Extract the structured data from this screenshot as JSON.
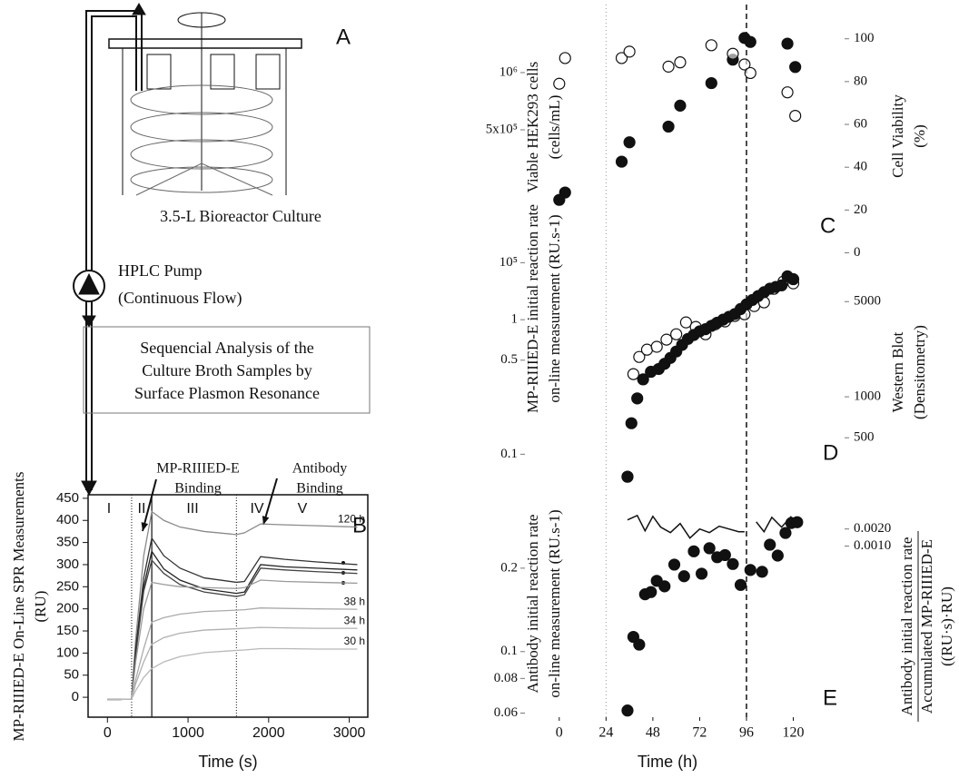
{
  "diagram": {
    "label": "A",
    "bioreactor_label": "3.5-L Bioreactor Culture",
    "pump_label": [
      "HPLC Pump",
      "(Continuous Flow)"
    ],
    "analysis_label": [
      "Sequencial Analysis of the",
      "Culture Broth Samples by",
      "Surface Plasmon Resonance"
    ]
  },
  "chart_data": [
    {
      "type": "line",
      "panel": "B",
      "xlabel": "Time (s)",
      "ylabel": [
        "MP-RIIIED-E On-Line SPR Measurements",
        "(RU)"
      ],
      "xlim": [
        -240,
        3230
      ],
      "ylim": [
        -45,
        458
      ],
      "xticks": [
        0,
        1000,
        2000,
        3000
      ],
      "yticks": [
        0,
        50,
        100,
        150,
        200,
        250,
        300,
        350,
        400,
        450
      ],
      "phase_lines": [
        300,
        550,
        1600
      ],
      "phase_labels": [
        "I",
        "II",
        "III",
        "IV",
        "V"
      ],
      "annotations": [
        {
          "text": [
            "MP-RIIIED-E",
            "Binding"
          ]
        },
        {
          "text": [
            "Antibody",
            "Binding"
          ]
        }
      ],
      "x": [
        0,
        150,
        300,
        350,
        450,
        550,
        700,
        900,
        1200,
        1600,
        1700,
        1900,
        2200,
        2600,
        3100
      ],
      "series": [
        {
          "name": "120 h",
          "color": "#8a8a8a",
          "values": [
            -5,
            -5,
            -4,
            130,
            320,
            420,
            400,
            385,
            375,
            368,
            372,
            392,
            390,
            388,
            385
          ]
        },
        {
          "color": "#333333",
          "values": [
            -5,
            -5,
            -4,
            110,
            270,
            360,
            320,
            292,
            270,
            260,
            262,
            318,
            312,
            306,
            300
          ]
        },
        {
          "color": "#222222",
          "values": [
            -5,
            -5,
            -4,
            100,
            250,
            330,
            290,
            265,
            245,
            235,
            238,
            300,
            295,
            292,
            288
          ]
        },
        {
          "color": "#444444",
          "values": [
            -5,
            -5,
            -4,
            95,
            240,
            310,
            280,
            255,
            238,
            228,
            232,
            292,
            288,
            284,
            280
          ]
        },
        {
          "color": "#9a9a9a",
          "values": [
            -5,
            -5,
            -4,
            80,
            200,
            260,
            255,
            250,
            248,
            246,
            248,
            265,
            262,
            260,
            258
          ]
        },
        {
          "name": "38 h",
          "color": "#aaaaaa",
          "values": [
            -5,
            -5,
            -4,
            40,
            110,
            170,
            180,
            188,
            194,
            197,
            198,
            202,
            201,
            200,
            199
          ]
        },
        {
          "name": "34 h",
          "color": "#b0b0b0",
          "values": [
            -5,
            -5,
            -4,
            30,
            80,
            120,
            135,
            145,
            152,
            155,
            156,
            158,
            157,
            156,
            156
          ]
        },
        {
          "name": "30 h",
          "color": "#b8b8b8",
          "values": [
            -5,
            -5,
            -4,
            15,
            45,
            65,
            80,
            92,
            101,
            106,
            107,
            110,
            110,
            109,
            109
          ]
        }
      ]
    },
    {
      "type": "scatter",
      "panel": "C",
      "ylabel": [
        "Viable HEK293 cells",
        "(cells/mL)"
      ],
      "y2label": [
        "Cell Viability",
        "(%)"
      ],
      "xlim": [
        -19,
        130
      ],
      "ylim": [
        94000,
        2280000
      ],
      "ylog": true,
      "yticks": [
        {
          "value": 1000000,
          "label": "10⁶"
        },
        {
          "value": 500000,
          "label": "5x10⁵"
        },
        {
          "value": 100000,
          "label": "10⁵"
        }
      ],
      "y2lim": [
        -7,
        116
      ],
      "y2ticks": [
        0,
        20,
        40,
        60,
        80,
        100
      ],
      "vlines": [
        {
          "x": 24,
          "style": "dotted"
        },
        {
          "x": 96,
          "style": "dashed"
        }
      ],
      "series": [
        {
          "marker": "filled",
          "color": "#111111",
          "x": [
            0,
            3,
            32,
            36,
            56,
            62,
            78,
            89,
            95,
            98,
            117,
            121
          ],
          "values": [
            214000,
            234000,
            340000,
            430000,
            520000,
            670000,
            880000,
            1170000,
            1520000,
            1450000,
            1420000,
            1070000
          ]
        },
        {
          "marker": "open",
          "color": "#111111",
          "axis": "y2",
          "x": [
            0,
            3,
            32,
            36,
            56,
            62,
            78,
            89,
            95,
            98,
            117,
            121
          ],
          "values": [
            79,
            91,
            91,
            94,
            87,
            89,
            97,
            93,
            88,
            84,
            75,
            64
          ]
        }
      ]
    },
    {
      "type": "scatter",
      "panel": "D",
      "ylabel": [
        "MP-RIIIED-E initial reaction rate",
        "on-line measurement (RU.s-1)"
      ],
      "y2label": [
        "Western Blot",
        "(Densitometry)"
      ],
      "xlim": [
        -19,
        130
      ],
      "ylim": [
        0.054,
        2.43
      ],
      "ylog": true,
      "yticks": [
        1,
        0.5,
        0.1
      ],
      "y2lim": [
        206,
        8860
      ],
      "y2log": true,
      "y2ticks": [
        5000,
        1000,
        500
      ],
      "vlines": [
        {
          "x": 24,
          "style": "dotted"
        },
        {
          "x": 96,
          "style": "dashed"
        }
      ],
      "series": [
        {
          "marker": "open",
          "color": "#111111",
          "axis": "y2",
          "x": [
            35,
            38,
            41,
            45,
            50,
            55,
            60,
            65,
            70,
            75,
            80,
            85,
            90,
            95,
            100,
            105,
            110,
            115,
            120
          ],
          "values": [
            259,
            1468,
            1963,
            2220,
            2330,
            2630,
            2880,
            3520,
            3260,
            2880,
            3410,
            3580,
            3920,
            4040,
            4640,
            4940,
            6210,
            7030,
            6810
          ]
        },
        {
          "marker": "filled",
          "color": "#111111",
          "x": [
            35,
            37,
            40,
            43,
            47,
            51,
            54,
            57,
            60,
            63,
            66,
            69,
            72,
            75,
            78,
            81,
            84,
            87,
            90,
            93,
            96,
            99,
            102,
            105,
            108,
            111,
            114,
            117,
            120
          ],
          "values": [
            0.068,
            0.17,
            0.26,
            0.36,
            0.41,
            0.43,
            0.47,
            0.52,
            0.58,
            0.65,
            0.72,
            0.77,
            0.82,
            0.85,
            0.9,
            0.95,
            1.0,
            1.05,
            1.1,
            1.2,
            1.3,
            1.4,
            1.5,
            1.6,
            1.7,
            1.75,
            1.8,
            2.1,
            2.0
          ]
        }
      ]
    },
    {
      "type": "scatter",
      "panel": "E",
      "xlabel": "Time (h)",
      "ylabel": [
        "Antibody initial reaction rate",
        "on-line measurement (RU.s-1)"
      ],
      "y2label": [
        "Antibody initial reaction rate",
        "Accumulated MP-RIIIED-E",
        "((RU·s)·RU)"
      ],
      "xlim": [
        -19,
        130
      ],
      "xticks": [
        0,
        24,
        48,
        72,
        96,
        120
      ],
      "ylim": [
        0.058,
        0.368
      ],
      "ylog": true,
      "yticks": [
        0.2,
        0.1,
        0.08,
        0.06
      ],
      "y2lim": [
        -0.009,
        0.004
      ],
      "y2ticks": [
        {
          "value": 0.002,
          "label": "0.0020"
        },
        {
          "value": 0.001,
          "label": "0.0010"
        }
      ],
      "vlines": [
        {
          "x": 24,
          "style": "dotted"
        },
        {
          "x": 96,
          "style": "dashed"
        }
      ],
      "series": [
        {
          "marker": "filled",
          "color": "#111111",
          "x": [
            35,
            38,
            41,
            44,
            47,
            50,
            54,
            59,
            64,
            69,
            73,
            77,
            81,
            85,
            89,
            93,
            98,
            104,
            108,
            112,
            116,
            119,
            122
          ],
          "values": [
            0.0613,
            0.113,
            0.106,
            0.161,
            0.164,
            0.18,
            0.172,
            0.206,
            0.187,
            0.23,
            0.191,
            0.236,
            0.219,
            0.223,
            0.207,
            0.174,
            0.197,
            0.194,
            0.243,
            0.222,
            0.268,
            0.291,
            0.293
          ]
        },
        {
          "mode": "line",
          "color": "#111111",
          "axis": "y2",
          "x": [
            35,
            40,
            44,
            48,
            52,
            57,
            62,
            67,
            72,
            77,
            82,
            87,
            92,
            95,
            98,
            101,
            105,
            109,
            114,
            119
          ],
          "values": [
            0.00253,
            0.00279,
            0.00189,
            0.00274,
            0.00211,
            0.00179,
            0.00232,
            0.00147,
            0.002,
            0.00179,
            0.00216,
            0.002,
            0.00184,
            0.00184,
            null,
            0.00242,
            0.00184,
            0.00268,
            0.00211,
            0.00274
          ]
        }
      ]
    }
  ]
}
